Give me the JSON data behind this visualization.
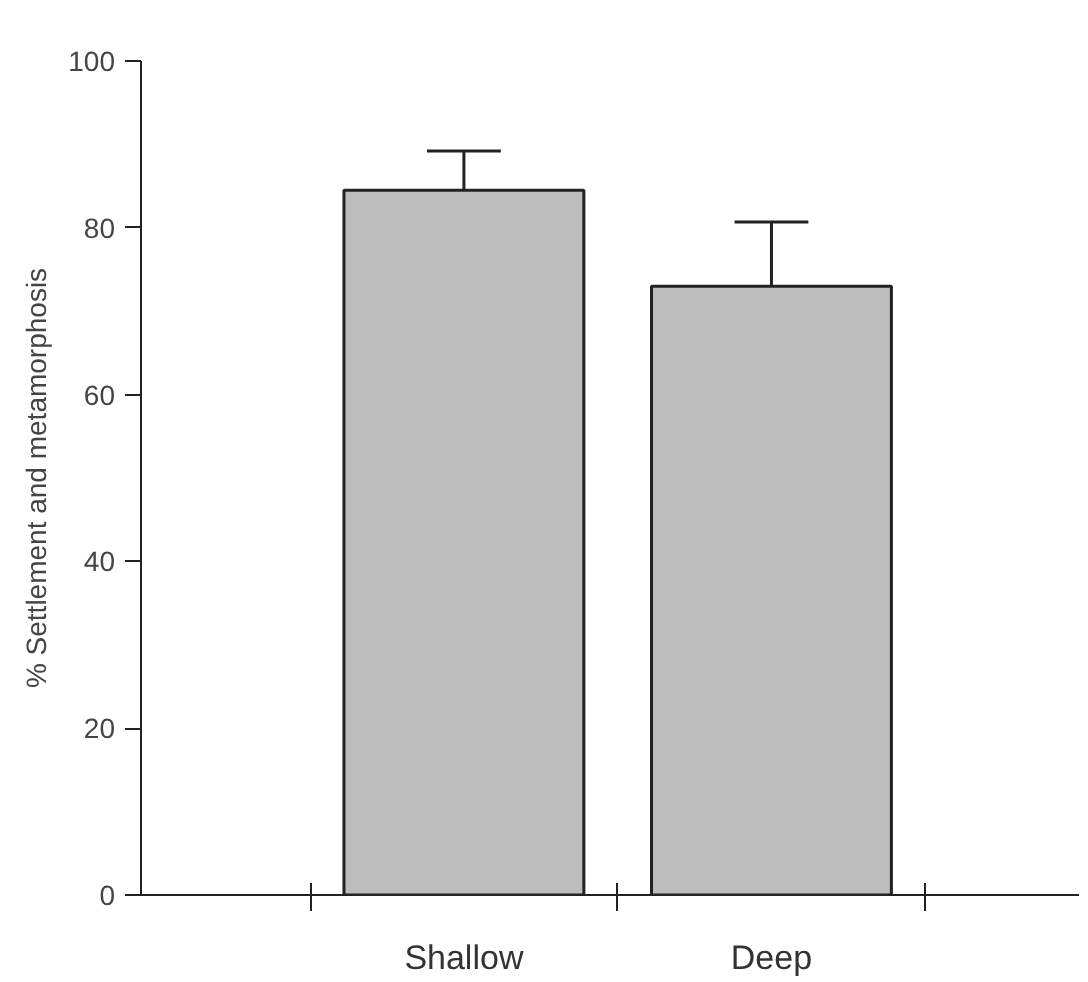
{
  "chart_data": {
    "type": "bar",
    "ylabel": "% Settlement and metamorphosis",
    "categories": [
      "Shallow",
      "Deep"
    ],
    "values": [
      84.5,
      73.0
    ],
    "errors": [
      [
        84.5,
        89.2
      ],
      [
        73.0,
        80.7
      ]
    ],
    "color": "#bdbdbd",
    "ylim": [
      0,
      100
    ],
    "yticks": [
      0,
      20,
      40,
      60,
      80,
      100
    ],
    "grid": false
  }
}
